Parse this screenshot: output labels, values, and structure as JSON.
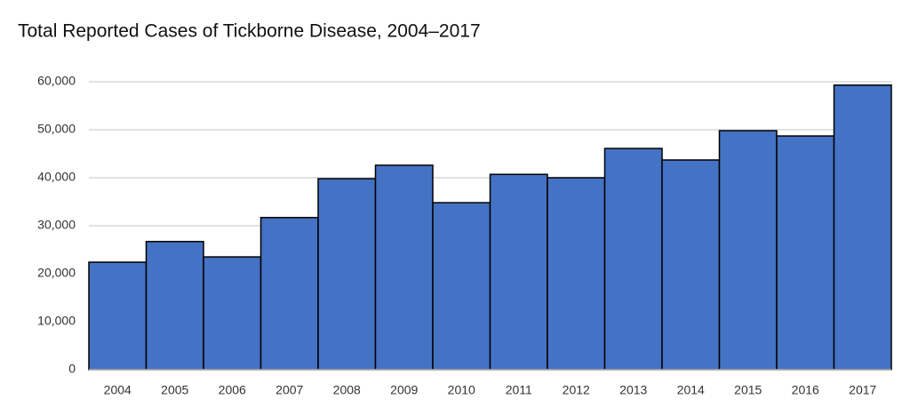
{
  "chart_data": {
    "type": "bar",
    "title": "Total Reported Cases of Tickborne Disease, 2004–2017",
    "categories": [
      "2004",
      "2005",
      "2006",
      "2007",
      "2008",
      "2009",
      "2010",
      "2011",
      "2012",
      "2013",
      "2014",
      "2015",
      "2016",
      "2017"
    ],
    "values": [
      22400,
      26700,
      23500,
      31700,
      39800,
      42600,
      34800,
      40700,
      40000,
      46100,
      43700,
      49800,
      48700,
      59300
    ],
    "color": "#4472c4",
    "ylim": [
      0,
      60000
    ],
    "yticks": [
      0,
      {
        "value": 10000,
        "label": "10,000"
      },
      {
        "value": 20000,
        "label": "20,000"
      },
      {
        "value": 30000,
        "label": "30,000"
      },
      {
        "value": 40000,
        "label": "40,000"
      },
      {
        "value": 50000,
        "label": "50,000"
      },
      {
        "value": 60000,
        "label": "60,000"
      }
    ],
    "grid": true
  }
}
